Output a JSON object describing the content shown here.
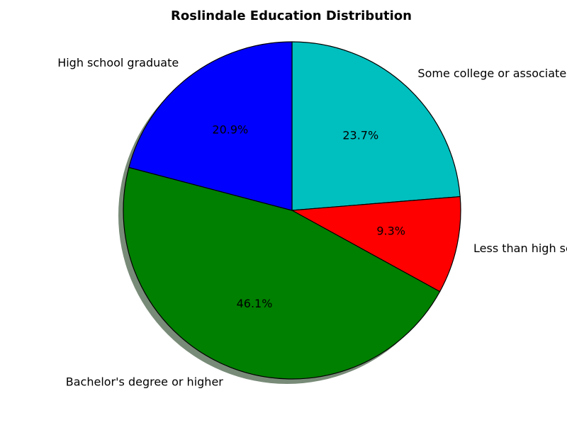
{
  "chart_data": {
    "type": "pie",
    "title": "Roslindale Education Distribution",
    "slices": [
      {
        "label": "Some college or associate's degree",
        "value": 23.7,
        "pct_label": "23.7%",
        "color": "#00bfbf"
      },
      {
        "label": "Less than high school",
        "value": 9.3,
        "pct_label": "9.3%",
        "color": "#ff0000"
      },
      {
        "label": "Bachelor's degree or higher",
        "value": 46.1,
        "pct_label": "46.1%",
        "color": "#008000"
      },
      {
        "label": "High school graduate",
        "value": 20.9,
        "pct_label": "20.9%",
        "color": "#0000ff"
      }
    ],
    "start_angle_deg": 90,
    "direction": "clockwise",
    "shadow": true,
    "legend": "none"
  }
}
